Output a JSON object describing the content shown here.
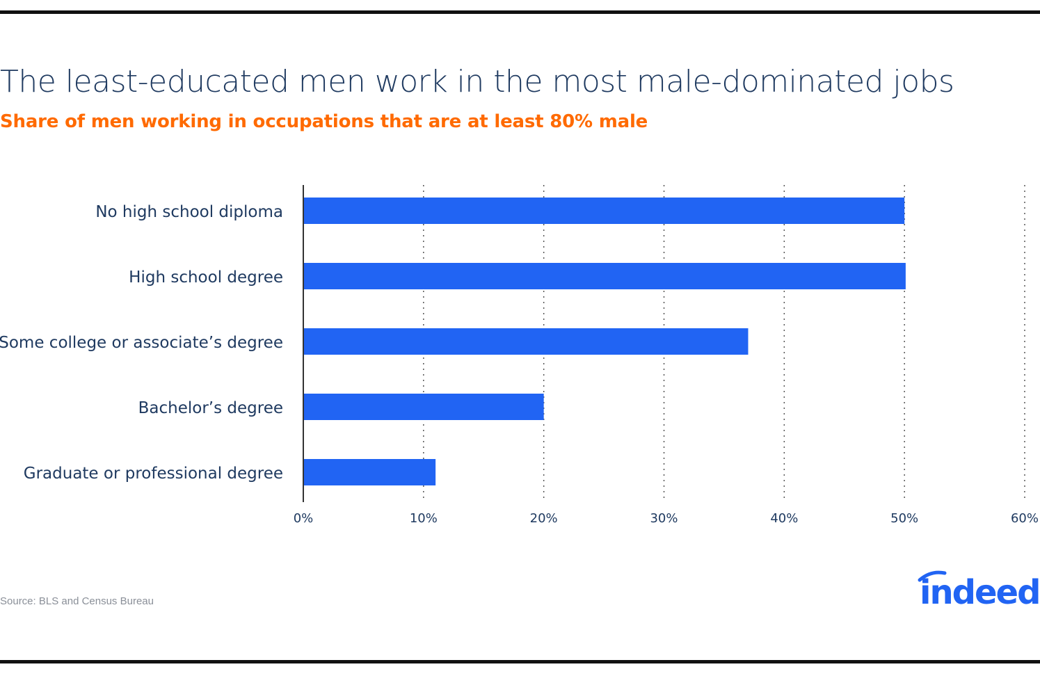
{
  "title": "The least-educated men work in the most male-dominated jobs",
  "subtitle": "Share of men working in occupations that are at least 80% male",
  "source": "Source: BLS and Census Bureau",
  "logo_text": "indeed",
  "colors": {
    "bar": "#2164f3",
    "title": "#1f3a60",
    "subtitle": "#ff6a00",
    "axis": "#333333",
    "grid": "#555555"
  },
  "chart_data": {
    "type": "bar",
    "orientation": "horizontal",
    "categories": [
      "No high school diploma",
      "High school degree",
      "Some college or associate’s degree",
      "Bachelor’s degree",
      "Graduate or professional degree"
    ],
    "values": [
      50,
      50.1,
      37,
      20,
      11
    ],
    "value_unit": "%",
    "xlim": [
      0,
      60
    ],
    "xticks": [
      0,
      10,
      20,
      30,
      40,
      50,
      60
    ],
    "xtick_labels": [
      "0%",
      "10%",
      "20%",
      "30%",
      "40%",
      "50%",
      "60%"
    ],
    "grid": "vertical dotted",
    "title": "The least-educated men work in the most male-dominated jobs",
    "subtitle": "Share of men working in occupations that are at least 80% male"
  }
}
